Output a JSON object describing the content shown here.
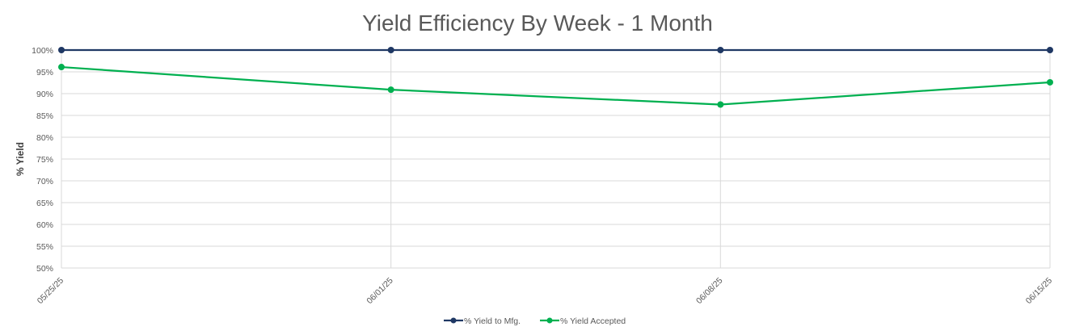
{
  "chart_data": {
    "type": "line",
    "title": "Yield Efficiency By Week - 1 Month",
    "xlabel": "",
    "ylabel": "% Yield",
    "categories": [
      "05/25/25",
      "06/01/25",
      "06/08/25",
      "06/15/25"
    ],
    "y_ticks": [
      "50%",
      "55%",
      "60%",
      "65%",
      "70%",
      "75%",
      "80%",
      "85%",
      "90%",
      "95%",
      "100%"
    ],
    "ylim": [
      50,
      100
    ],
    "grid": true,
    "legend_position": "bottom",
    "series": [
      {
        "name": "% Yield to Mfg.",
        "color": "#1f3864",
        "values": [
          100,
          100,
          100,
          100
        ]
      },
      {
        "name": "% Yield Accepted",
        "color": "#00b050",
        "values": [
          96.1,
          90.9,
          87.5,
          92.6
        ]
      }
    ]
  }
}
